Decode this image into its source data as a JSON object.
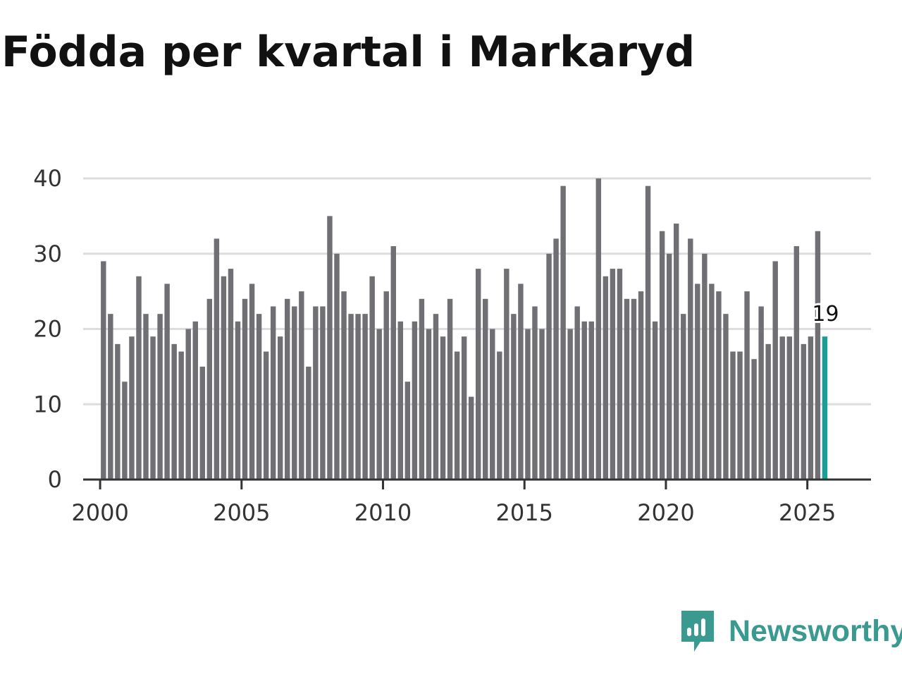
{
  "title": "Födda per kvartal i Markaryd",
  "brand": {
    "name": "Newsworthy",
    "icon": "newsworthy-logo-icon",
    "color": "#3a9a90"
  },
  "colors": {
    "bar": "#707074",
    "highlight": "#1a9e96",
    "grid": "#dddddd",
    "axis": "#333333"
  },
  "chart_data": {
    "type": "bar",
    "title": "Födda per kvartal i Markaryd",
    "xlabel": "",
    "ylabel": "",
    "ylim": [
      0,
      40
    ],
    "yticks": [
      0,
      10,
      20,
      30,
      40
    ],
    "xlim": [
      1999.4,
      2027.25
    ],
    "xticks": [
      2000,
      2005,
      2010,
      2015,
      2020,
      2025
    ],
    "grid": true,
    "start": {
      "year": 2000,
      "quarter": 1
    },
    "highlight_last": true,
    "last_label": "19",
    "values": [
      29,
      22,
      18,
      13,
      19,
      27,
      22,
      19,
      22,
      26,
      18,
      17,
      20,
      21,
      15,
      24,
      32,
      27,
      28,
      21,
      24,
      26,
      22,
      17,
      23,
      19,
      24,
      23,
      25,
      15,
      23,
      23,
      35,
      30,
      25,
      22,
      22,
      22,
      27,
      20,
      25,
      31,
      21,
      13,
      21,
      24,
      20,
      22,
      19,
      24,
      17,
      19,
      11,
      28,
      24,
      20,
      17,
      28,
      22,
      26,
      20,
      23,
      20,
      30,
      32,
      39,
      20,
      23,
      21,
      21,
      40,
      27,
      28,
      28,
      24,
      24,
      25,
      39,
      21,
      33,
      30,
      34,
      22,
      32,
      26,
      30,
      26,
      25,
      22,
      17,
      17,
      25,
      16,
      23,
      18,
      29,
      19,
      19,
      31,
      18,
      19,
      33,
      19
    ]
  }
}
